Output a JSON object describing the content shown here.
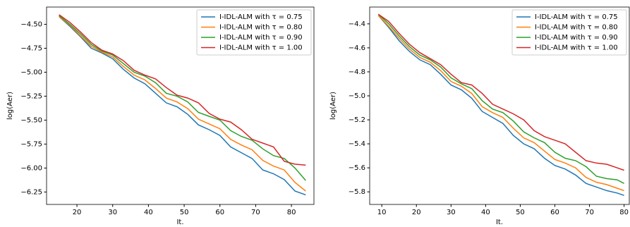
{
  "chart_data": [
    {
      "type": "line",
      "xlabel": "It.",
      "ylabel": "log(Aer)",
      "legend": "upper right",
      "x": [
        15,
        18,
        21,
        24,
        27,
        30,
        33,
        36,
        39,
        42,
        45,
        48,
        51,
        54,
        57,
        60,
        63,
        66,
        69,
        72,
        75,
        78,
        81,
        84
      ],
      "xlim": [
        11.5,
        86.3
      ],
      "ylim": [
        -6.38,
        -4.32
      ],
      "xticks": [
        20,
        30,
        40,
        50,
        60,
        70,
        80
      ],
      "yticks": [
        {
          "value": -4.5,
          "label": "−4.50"
        },
        {
          "value": -4.75,
          "label": "−4.75"
        },
        {
          "value": -5.0,
          "label": "−5.00"
        },
        {
          "value": -5.25,
          "label": "−5.25"
        },
        {
          "value": -5.5,
          "label": "−5.50"
        },
        {
          "value": -5.75,
          "label": "−5.75"
        },
        {
          "value": -6.0,
          "label": "−6.00"
        },
        {
          "value": -6.25,
          "label": "−6.25"
        }
      ],
      "series": [
        {
          "name": "I-IDL-ALM with τ = 0.75",
          "color": "#1f77b4",
          "values": [
            -4.42,
            -4.52,
            -4.63,
            -4.75,
            -4.8,
            -4.86,
            -4.97,
            -5.06,
            -5.12,
            -5.22,
            -5.32,
            -5.36,
            -5.44,
            -5.55,
            -5.6,
            -5.66,
            -5.78,
            -5.84,
            -5.9,
            -6.02,
            -6.06,
            -6.12,
            -6.24,
            -6.28
          ]
        },
        {
          "name": "I-IDL-ALM with τ = 0.80",
          "color": "#ff7f0e",
          "values": [
            -4.42,
            -4.51,
            -4.62,
            -4.73,
            -4.79,
            -4.84,
            -4.94,
            -5.03,
            -5.08,
            -5.17,
            -5.27,
            -5.31,
            -5.38,
            -5.49,
            -5.54,
            -5.59,
            -5.7,
            -5.76,
            -5.81,
            -5.92,
            -5.98,
            -6.02,
            -6.15,
            -6.24
          ]
        },
        {
          "name": "I-IDL-ALM with τ = 0.90",
          "color": "#2ca02c",
          "values": [
            -4.41,
            -4.5,
            -4.6,
            -4.71,
            -4.78,
            -4.82,
            -4.91,
            -5.0,
            -5.04,
            -5.11,
            -5.22,
            -5.25,
            -5.31,
            -5.42,
            -5.46,
            -5.5,
            -5.61,
            -5.67,
            -5.71,
            -5.8,
            -5.87,
            -5.9,
            -6.0,
            -6.13
          ]
        },
        {
          "name": "I-IDL-ALM with τ = 1.00",
          "color": "#d62728",
          "values": [
            -4.4,
            -4.48,
            -4.58,
            -4.69,
            -4.77,
            -4.81,
            -4.88,
            -4.98,
            -5.03,
            -5.07,
            -5.16,
            -5.24,
            -5.27,
            -5.32,
            -5.43,
            -5.49,
            -5.52,
            -5.6,
            -5.7,
            -5.74,
            -5.78,
            -5.93,
            -5.96,
            -5.97
          ]
        }
      ]
    },
    {
      "type": "line",
      "xlabel": "It.",
      "ylabel": "log(Aer)",
      "legend": "upper right",
      "x": [
        9,
        12,
        15,
        18,
        21,
        24,
        27,
        30,
        33,
        36,
        39,
        42,
        45,
        48,
        51,
        54,
        57,
        60,
        63,
        66,
        69,
        72,
        75,
        78,
        80
      ],
      "xlim": [
        6.5,
        81.5
      ],
      "ylim": [
        -5.905,
        -4.26
      ],
      "xticks": [
        10,
        20,
        30,
        40,
        50,
        60,
        70,
        80
      ],
      "yticks": [
        {
          "value": -4.4,
          "label": "−4.4"
        },
        {
          "value": -4.6,
          "label": "−4.6"
        },
        {
          "value": -4.8,
          "label": "−4.8"
        },
        {
          "value": -5.0,
          "label": "−5.0"
        },
        {
          "value": -5.2,
          "label": "−5.2"
        },
        {
          "value": -5.4,
          "label": "−5.4"
        },
        {
          "value": -5.6,
          "label": "−5.6"
        },
        {
          "value": -5.8,
          "label": "−5.8"
        }
      ],
      "series": [
        {
          "name": "I-IDL-ALM with τ = 0.75",
          "color": "#1f77b4",
          "values": [
            -4.33,
            -4.43,
            -4.54,
            -4.63,
            -4.7,
            -4.74,
            -4.82,
            -4.91,
            -4.95,
            -5.02,
            -5.13,
            -5.18,
            -5.23,
            -5.33,
            -5.4,
            -5.44,
            -5.52,
            -5.58,
            -5.61,
            -5.66,
            -5.73,
            -5.76,
            -5.79,
            -5.81,
            -5.83
          ]
        },
        {
          "name": "I-IDL-ALM with τ = 0.80",
          "color": "#ff7f0e",
          "values": [
            -4.33,
            -4.42,
            -4.52,
            -4.61,
            -4.68,
            -4.72,
            -4.79,
            -4.88,
            -4.92,
            -4.98,
            -5.09,
            -5.14,
            -5.18,
            -5.27,
            -5.35,
            -5.39,
            -5.46,
            -5.53,
            -5.56,
            -5.6,
            -5.68,
            -5.72,
            -5.74,
            -5.77,
            -5.79
          ]
        },
        {
          "name": "I-IDL-ALM with τ = 0.90",
          "color": "#2ca02c",
          "values": [
            -4.32,
            -4.4,
            -4.5,
            -4.59,
            -4.66,
            -4.7,
            -4.76,
            -4.85,
            -4.9,
            -4.94,
            -5.04,
            -5.11,
            -5.14,
            -5.21,
            -5.3,
            -5.35,
            -5.39,
            -5.47,
            -5.52,
            -5.54,
            -5.59,
            -5.67,
            -5.69,
            -5.7,
            -5.73
          ]
        },
        {
          "name": "I-IDL-ALM with τ = 1.00",
          "color": "#d62728",
          "values": [
            -4.32,
            -4.38,
            -4.48,
            -4.57,
            -4.64,
            -4.69,
            -4.74,
            -4.82,
            -4.89,
            -4.91,
            -4.98,
            -5.07,
            -5.11,
            -5.15,
            -5.2,
            -5.29,
            -5.34,
            -5.37,
            -5.4,
            -5.47,
            -5.54,
            -5.56,
            -5.57,
            -5.6,
            -5.62
          ]
        }
      ]
    }
  ]
}
